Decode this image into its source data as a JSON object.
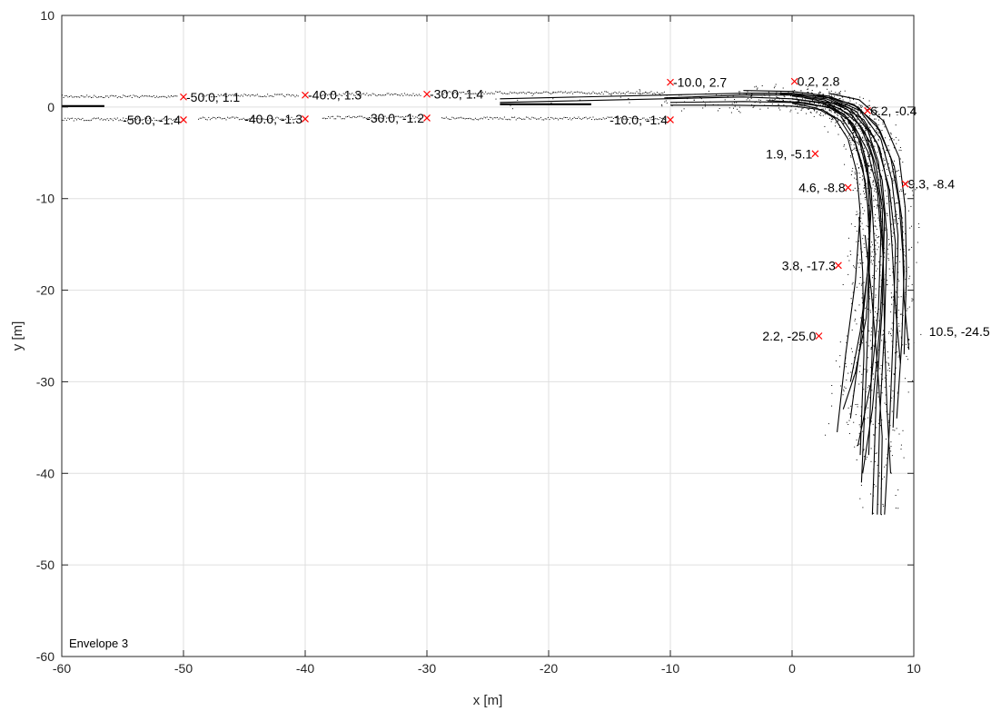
{
  "chart_data": {
    "type": "line",
    "xlabel": "x [m]",
    "ylabel": "y [m]",
    "xlim": [
      -60,
      10
    ],
    "ylim": [
      -60,
      10
    ],
    "xticks": [
      -60,
      -50,
      -40,
      -30,
      -20,
      -10,
      0,
      10
    ],
    "yticks": [
      -60,
      -50,
      -40,
      -30,
      -20,
      -10,
      0,
      10
    ],
    "xtick_labels": [
      "-60",
      "-50",
      "-40",
      "-30",
      "-20",
      "-10",
      "0",
      "10"
    ],
    "ytick_labels": [
      "-60",
      "-50",
      "-40",
      "-30",
      "-20",
      "-10",
      "0",
      "10"
    ],
    "grid": true,
    "envelope_label": "Envelope 3",
    "colors": {
      "marker": "#ff0000",
      "trajectory": "#000000",
      "grid": "#dfdfdf",
      "axis": "#262626"
    },
    "markers": [
      {
        "x": -50.0,
        "y": 1.1,
        "label": "-50.0, 1.1",
        "anchor": "right"
      },
      {
        "x": -40.0,
        "y": 1.3,
        "label": "-40.0, 1.3",
        "anchor": "right"
      },
      {
        "x": -30.0,
        "y": 1.4,
        "label": "-30.0, 1.4",
        "anchor": "right"
      },
      {
        "x": -10.0,
        "y": 2.7,
        "label": "-10.0, 2.7",
        "anchor": "right"
      },
      {
        "x": 0.2,
        "y": 2.8,
        "label": "0.2, 2.8",
        "anchor": "right"
      },
      {
        "x": 6.2,
        "y": -0.4,
        "label": "6.2, -0.4",
        "anchor": "right"
      },
      {
        "x": 9.3,
        "y": -8.4,
        "label": "9.3, -8.4",
        "anchor": "right"
      },
      {
        "x": -50.0,
        "y": -1.4,
        "label": "-50.0, -1.4",
        "anchor": "left"
      },
      {
        "x": -40.0,
        "y": -1.3,
        "label": "-40.0, -1.3",
        "anchor": "left"
      },
      {
        "x": -30.0,
        "y": -1.2,
        "label": "-30.0, -1.2",
        "anchor": "left"
      },
      {
        "x": -10.0,
        "y": -1.4,
        "label": "-10.0, -1.4",
        "anchor": "left"
      },
      {
        "x": 1.9,
        "y": -5.1,
        "label": "1.9, -5.1",
        "anchor": "left"
      },
      {
        "x": 4.6,
        "y": -8.8,
        "label": "4.6, -8.8",
        "anchor": "left"
      },
      {
        "x": 3.8,
        "y": -17.3,
        "label": "3.8, -17.3",
        "anchor": "left"
      },
      {
        "x": 2.2,
        "y": -25.0,
        "label": "2.2, -25.0",
        "anchor": "left"
      }
    ],
    "free_labels": [
      {
        "x": 10.5,
        "y": -24.5,
        "label": "10.5, -24.5"
      }
    ],
    "trajectories": [
      {
        "points": [
          [
            -60,
            0.1
          ],
          [
            -56.5,
            0.1
          ]
        ]
      },
      {
        "points": [
          [
            -24,
            0.3
          ],
          [
            -16.5,
            0.3
          ]
        ]
      },
      {
        "points": [
          [
            -24,
            0.5
          ],
          [
            -10.5,
            0.9
          ],
          [
            -4,
            1.1
          ],
          [
            0,
            0.9
          ],
          [
            3,
            0.4
          ],
          [
            5,
            -1
          ],
          [
            6.5,
            -4
          ],
          [
            7.4,
            -8
          ],
          [
            7.8,
            -14
          ],
          [
            7.6,
            -24
          ],
          [
            7.2,
            -34
          ],
          [
            7,
            -44.5
          ]
        ]
      },
      {
        "points": [
          [
            -24,
            0.9
          ],
          [
            -10.5,
            1.3
          ],
          [
            -4,
            1.5
          ],
          [
            0,
            1.5
          ],
          [
            3,
            1
          ],
          [
            5.3,
            -0.5
          ],
          [
            7,
            -4
          ],
          [
            8,
            -9
          ],
          [
            8.5,
            -15
          ],
          [
            8.3,
            -25
          ],
          [
            8,
            -35
          ],
          [
            7.6,
            -44.5
          ]
        ]
      },
      {
        "points": [
          [
            -10.5,
            1.0
          ],
          [
            -4,
            1.3
          ],
          [
            0,
            1.3
          ],
          [
            2.8,
            0.9
          ],
          [
            4.8,
            -0.2
          ],
          [
            6.2,
            -2.5
          ],
          [
            7.1,
            -6
          ],
          [
            7.6,
            -12
          ],
          [
            7.4,
            -22
          ],
          [
            6.9,
            -32
          ],
          [
            6.6,
            -44.5
          ]
        ]
      },
      {
        "points": [
          [
            -10,
            0.2
          ],
          [
            -5,
            0.2
          ],
          [
            0,
            0.1
          ],
          [
            2.5,
            -0.3
          ],
          [
            4,
            -1.5
          ],
          [
            5.2,
            -4
          ],
          [
            6,
            -8
          ],
          [
            6.4,
            -13
          ],
          [
            6.3,
            -22
          ],
          [
            6,
            -32
          ],
          [
            5.7,
            -41
          ]
        ]
      },
      {
        "points": [
          [
            -10,
            0.5
          ],
          [
            -4,
            0.6
          ],
          [
            0,
            0.5
          ],
          [
            3,
            0
          ],
          [
            4.8,
            -1.5
          ],
          [
            5.8,
            -4.5
          ],
          [
            6.5,
            -9
          ],
          [
            6.8,
            -16
          ],
          [
            6.6,
            -26
          ],
          [
            6.3,
            -38
          ]
        ]
      },
      {
        "points": [
          [
            -4,
            1.8
          ],
          [
            0,
            1.7
          ],
          [
            3,
            1.2
          ],
          [
            5.4,
            0
          ],
          [
            7.2,
            -2.5
          ],
          [
            8.4,
            -6.5
          ],
          [
            9,
            -12
          ],
          [
            9.2,
            -18
          ],
          [
            9,
            -26
          ],
          [
            8.6,
            -34
          ]
        ]
      },
      {
        "points": [
          [
            -4,
            1.5
          ],
          [
            0,
            1.5
          ],
          [
            3.2,
            1
          ],
          [
            5.6,
            -0.4
          ],
          [
            7.3,
            -3.5
          ],
          [
            8.2,
            -8
          ],
          [
            8.7,
            -14
          ],
          [
            8.6,
            -24
          ],
          [
            8.3,
            -35
          ]
        ]
      },
      {
        "points": [
          [
            0,
            0.9
          ],
          [
            2.5,
            0.4
          ],
          [
            4.3,
            -0.8
          ],
          [
            5.5,
            -3
          ],
          [
            6.2,
            -6.5
          ],
          [
            6.5,
            -11
          ],
          [
            6.2,
            -18
          ],
          [
            5.6,
            -26
          ],
          [
            4.8,
            -34
          ]
        ]
      },
      {
        "points": [
          [
            0,
            0.4
          ],
          [
            2,
            -0.1
          ],
          [
            3.5,
            -1.2
          ],
          [
            4.6,
            -3.5
          ],
          [
            5.3,
            -7
          ],
          [
            5.6,
            -11.5
          ],
          [
            5.2,
            -19
          ],
          [
            4.4,
            -27
          ],
          [
            3.7,
            -35.5
          ]
        ]
      },
      {
        "points": [
          [
            0,
            1.2
          ],
          [
            2.6,
            0.8
          ],
          [
            4.6,
            -0.3
          ],
          [
            6,
            -2.8
          ],
          [
            6.9,
            -6.5
          ],
          [
            7.4,
            -11
          ],
          [
            7.5,
            -16
          ],
          [
            7.2,
            -24
          ],
          [
            6.6,
            -33
          ],
          [
            5.8,
            -40
          ]
        ]
      },
      {
        "points": [
          [
            3,
            0.3
          ],
          [
            4.4,
            -1
          ],
          [
            5.5,
            -3.5
          ],
          [
            6.2,
            -7.5
          ],
          [
            6.4,
            -12
          ],
          [
            6.2,
            -18
          ],
          [
            5.6,
            -24.5
          ],
          [
            4.8,
            -30
          ]
        ]
      },
      {
        "points": [
          [
            2,
            0.6
          ],
          [
            4,
            -0.2
          ],
          [
            5.6,
            -2
          ],
          [
            6.6,
            -5.5
          ],
          [
            7.2,
            -10
          ],
          [
            7.5,
            -17
          ],
          [
            7.6,
            -25
          ],
          [
            7.8,
            -33
          ],
          [
            8.1,
            -40
          ]
        ]
      },
      {
        "points": [
          [
            1,
            1.0
          ],
          [
            3.8,
            0.3
          ],
          [
            5.9,
            -1.4
          ],
          [
            7.2,
            -4.5
          ],
          [
            7.9,
            -9
          ],
          [
            8.2,
            -15
          ],
          [
            8.5,
            -22
          ],
          [
            8.9,
            -28
          ]
        ]
      },
      {
        "points": [
          [
            3,
            1.5
          ],
          [
            5.5,
            0.8
          ],
          [
            7.5,
            -1.5
          ],
          [
            8.8,
            -5.5
          ],
          [
            9.3,
            -11
          ],
          [
            9.4,
            -18
          ],
          [
            9.2,
            -27
          ]
        ]
      },
      {
        "points": [
          [
            -2,
            0.7
          ],
          [
            1,
            0.5
          ],
          [
            3.4,
            -0.2
          ],
          [
            5,
            -1.8
          ],
          [
            6.2,
            -4.8
          ],
          [
            7,
            -9
          ],
          [
            7.3,
            -14
          ],
          [
            7.1,
            -22
          ],
          [
            6.5,
            -30
          ],
          [
            5.4,
            -37
          ]
        ]
      },
      {
        "points": [
          [
            4,
            -1
          ],
          [
            5,
            -3
          ],
          [
            5.8,
            -6.5
          ],
          [
            6.2,
            -10.5
          ],
          [
            6.4,
            -16
          ],
          [
            6.1,
            -23
          ],
          [
            5.2,
            -29
          ],
          [
            4.2,
            -33
          ]
        ]
      },
      {
        "points": [
          [
            -1,
            1.4
          ],
          [
            2.5,
            1.2
          ],
          [
            5,
            0.3
          ],
          [
            6.9,
            -1.8
          ],
          [
            8.1,
            -5.5
          ],
          [
            8.8,
            -10.5
          ],
          [
            9.1,
            -16
          ],
          [
            9.2,
            -21
          ],
          [
            9.6,
            -26.5
          ]
        ]
      },
      {
        "points": [
          [
            6,
            -14
          ],
          [
            6.5,
            -20
          ],
          [
            7,
            -28
          ],
          [
            7.4,
            -36
          ],
          [
            7.3,
            -44.5
          ]
        ]
      },
      {
        "points": [
          [
            5.5,
            -12
          ],
          [
            5.8,
            -18
          ],
          [
            5.9,
            -27
          ],
          [
            5.6,
            -38
          ]
        ]
      }
    ],
    "dotted_segments": [
      {
        "x": [
          -60,
          -50.5
        ],
        "y": 1.2
      },
      {
        "x": [
          -60,
          -50.5
        ],
        "y": -1.3
      },
      {
        "x": [
          -48.5,
          -40.5
        ],
        "y": 1.3
      },
      {
        "x": [
          -48.8,
          -40.5
        ],
        "y": -1.2
      },
      {
        "x": [
          -38.8,
          -30.5
        ],
        "y": 1.4
      },
      {
        "x": [
          -38.6,
          -30.5
        ],
        "y": -1.1
      },
      {
        "x": [
          -28.8,
          -10.5
        ],
        "y": 1.6
      },
      {
        "x": [
          -28.8,
          -10.5
        ],
        "y": -1.2
      }
    ]
  }
}
